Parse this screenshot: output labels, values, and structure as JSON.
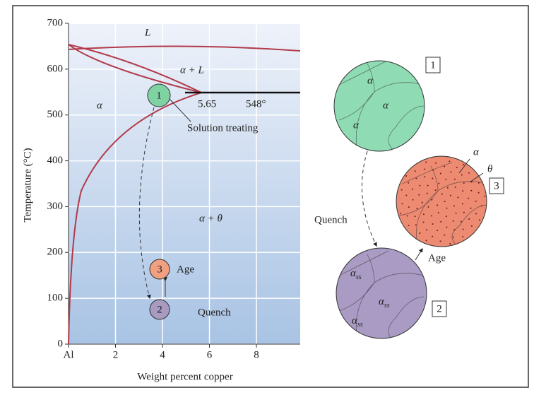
{
  "diagram": {
    "y_axis": {
      "label": "Temperature (°C)",
      "ticks": [
        "0",
        "100",
        "200",
        "300",
        "400",
        "500",
        "600",
        "700"
      ]
    },
    "x_axis": {
      "label": "Weight percent copper",
      "ticks": [
        "Al",
        "2",
        "4",
        "6",
        "8"
      ]
    },
    "region_labels": [
      "L",
      "α + L",
      "α",
      "α + θ"
    ],
    "eutectic": {
      "composition": "5.65",
      "temperature": "548°"
    },
    "steps": [
      {
        "number": "1",
        "label": "Solution treating"
      },
      {
        "number": "3",
        "label": "Age"
      },
      {
        "number": "2",
        "label": "Quench"
      }
    ],
    "microstructures": [
      {
        "number": "1",
        "phases": [
          "α",
          "α",
          "α"
        ]
      },
      {
        "number": "3",
        "phases": [
          "α",
          "θ"
        ]
      },
      {
        "number": "2",
        "phases": [
          {
            "symbol": "α",
            "subscript": "ss"
          },
          {
            "symbol": "α",
            "subscript": "ss"
          },
          {
            "symbol": "α",
            "subscript": "ss"
          }
        ]
      }
    ],
    "arrows": [
      "Quench",
      "Age"
    ]
  }
}
